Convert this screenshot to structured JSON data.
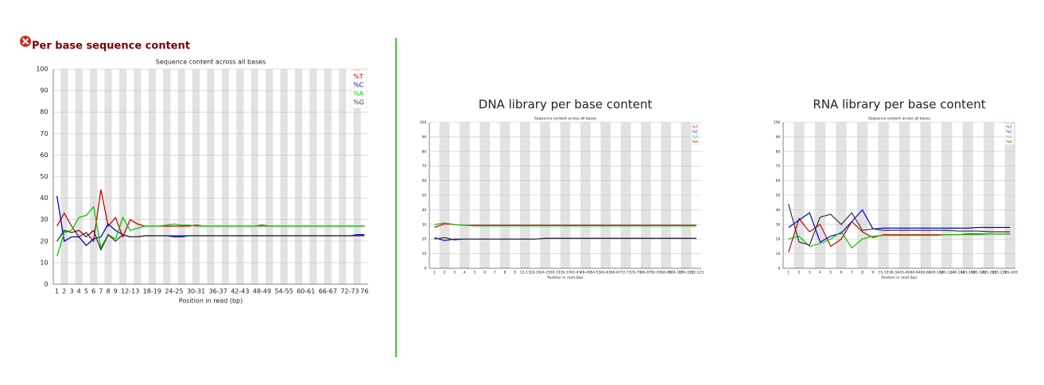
{
  "header": {
    "title": "Per base sequence content"
  },
  "chart_data": [
    {
      "type": "line",
      "subtitle": "Sequence content across all bases",
      "xlabel": "Position in read (bp)",
      "categories": [
        "1",
        "2",
        "3",
        "4",
        "5",
        "6",
        "7",
        "8",
        "9",
        null,
        "12-13",
        null,
        null,
        "18-19",
        null,
        null,
        "24-25",
        null,
        null,
        "30-31",
        null,
        null,
        "36-37",
        null,
        null,
        "42-43",
        null,
        null,
        "48-49",
        null,
        null,
        "54-55",
        null,
        null,
        "60-61",
        null,
        null,
        "66-67",
        null,
        null,
        "72-73",
        null,
        "76"
      ],
      "series": [
        {
          "name": "%T",
          "color": "#cc0000",
          "values": [
            27,
            33,
            27,
            22,
            24,
            20,
            44,
            27,
            31,
            22,
            30,
            28,
            27,
            27,
            27,
            27,
            27,
            27,
            27,
            27.5,
            27,
            27,
            27,
            27,
            27,
            27,
            27,
            27,
            27.5,
            27,
            27,
            27,
            27,
            27,
            27,
            27,
            27,
            27,
            27,
            27,
            27,
            27,
            27
          ]
        },
        {
          "name": "%C",
          "color": "#0000cc",
          "values": [
            41,
            20,
            22,
            22,
            18,
            21,
            22,
            28,
            25,
            23,
            22,
            22,
            22.5,
            22.5,
            22.5,
            22.5,
            22,
            22,
            22.5,
            22.5,
            22.5,
            22.5,
            22.5,
            22.5,
            22.5,
            22.5,
            22.5,
            22.5,
            22.5,
            22.5,
            22.5,
            22.5,
            22.5,
            22.5,
            22.5,
            22.5,
            22.5,
            22.5,
            22.5,
            22.5,
            22.5,
            23,
            23
          ]
        },
        {
          "name": "%A",
          "color": "#00cc00",
          "values": [
            13,
            24,
            25,
            31,
            32,
            36,
            17,
            23,
            21,
            31,
            25,
            26,
            27,
            27,
            27,
            27.5,
            28,
            27.5,
            27.5,
            27,
            27,
            27,
            27,
            27,
            27,
            27,
            27,
            27,
            27,
            27,
            27,
            27,
            27,
            27,
            27,
            27,
            27,
            27,
            27,
            27,
            27,
            27,
            27
          ]
        },
        {
          "name": "%G",
          "color": "#333333",
          "values": [
            20,
            25,
            24,
            25,
            22,
            25,
            16,
            23,
            20,
            23,
            22,
            22,
            22.5,
            22.5,
            22.5,
            22.5,
            22.5,
            22.5,
            22.5,
            22.5,
            22.5,
            22.5,
            22.5,
            22.5,
            22.5,
            22.5,
            22.5,
            22.5,
            22.5,
            22.5,
            22.5,
            22.5,
            22.5,
            22.5,
            22.5,
            22.5,
            22.5,
            22.5,
            22.5,
            22.5,
            22.5,
            22.5,
            22.5
          ]
        }
      ],
      "ylim": [
        0,
        100
      ],
      "yticks": [
        0,
        10,
        20,
        30,
        40,
        50,
        60,
        70,
        80,
        90,
        100
      ],
      "grid": true,
      "legend": "top-right"
    },
    {
      "type": "line",
      "title": "DNA library per base content",
      "subtitle": "Sequence content across all bases",
      "xlabel": "Position in read (bp)",
      "categories": [
        "1",
        "2",
        "3",
        "4",
        "5",
        "6",
        "7",
        "8",
        "9",
        "12-13",
        "18-19",
        "24-25",
        "30-31",
        "36-37",
        "42-43",
        "48-49",
        "54-55",
        "60-61",
        "66-67",
        "72-73",
        "78-79",
        "86-87",
        "92-93",
        "98-99",
        "106-107",
        "114-115",
        "122-123"
      ],
      "series": [
        {
          "name": "%T",
          "color": "#cc0000",
          "values": [
            28,
            30.5,
            30,
            29.5,
            29.5,
            29.5,
            29.5,
            29.5,
            29.5,
            29.5,
            29.5,
            29.5,
            29.5,
            29.5,
            29.5,
            29.5,
            29.5,
            29.5,
            29.5,
            29.5,
            29.5,
            29.5,
            29.5,
            29.5,
            29.5,
            29.5,
            29.5
          ]
        },
        {
          "name": "%C",
          "color": "#0000cc",
          "values": [
            21,
            19,
            20,
            20,
            20,
            20,
            20,
            20,
            20,
            20,
            20,
            20.5,
            20.5,
            20.5,
            20.5,
            20.5,
            20.5,
            20.5,
            20.5,
            20.5,
            20.5,
            20.5,
            20.5,
            20.5,
            20.5,
            20.5,
            20.5
          ]
        },
        {
          "name": "%A",
          "color": "#00cc00",
          "values": [
            30,
            31,
            30,
            29.5,
            29,
            29,
            29,
            29,
            29,
            29,
            29,
            29,
            29,
            29,
            29,
            29,
            29,
            29,
            29,
            29,
            29,
            29,
            29,
            29,
            29,
            29,
            29
          ]
        },
        {
          "name": "%G",
          "color": "#333333",
          "values": [
            20,
            21,
            19.5,
            20,
            20,
            20,
            20,
            20,
            20,
            20,
            20,
            20.5,
            20.5,
            20.5,
            20.5,
            20.5,
            20.5,
            20.5,
            20.5,
            20.5,
            20.5,
            20.5,
            20.5,
            20.5,
            20.5,
            20.5,
            20.5
          ]
        }
      ],
      "ylim": [
        0,
        100
      ],
      "yticks": [
        0,
        10,
        20,
        30,
        40,
        50,
        60,
        70,
        80,
        90,
        100
      ],
      "grid": true,
      "legend": "top-right"
    },
    {
      "type": "line",
      "title": "RNA library per base content",
      "subtitle": "Sequence content across all bases",
      "xlabel": "Position in read (bp)",
      "categories": [
        "1",
        "2",
        "3",
        "4",
        "5",
        "6",
        "7",
        "8",
        "9",
        "15-19",
        "30-34",
        "45-49",
        "60-64",
        "80-84",
        "100-104",
        "120-124",
        "140-144",
        "165-169",
        "185-189",
        "205-209",
        "225-229",
        "245-249"
      ],
      "series": [
        {
          "name": "%T",
          "color": "#cc0000",
          "values": [
            11,
            34,
            25,
            30,
            15,
            20,
            32,
            25,
            21,
            23,
            23,
            23,
            23,
            23,
            23,
            23,
            23,
            23.5,
            23.5,
            23.5,
            23.5,
            23.5
          ]
        },
        {
          "name": "%C",
          "color": "#0000cc",
          "values": [
            28,
            33,
            38,
            18,
            22,
            24,
            32,
            40,
            27,
            27.5,
            27.5,
            27.5,
            27.5,
            27.5,
            27.5,
            27.5,
            27.5,
            27.5,
            28,
            28,
            28,
            28
          ]
        },
        {
          "name": "%A",
          "color": "#00cc00",
          "values": [
            20,
            22,
            15,
            17,
            20,
            25,
            14,
            20,
            22,
            22.5,
            22.5,
            22.5,
            22.5,
            22.5,
            22.5,
            23,
            23,
            23,
            23,
            23.5,
            23.5,
            23.5
          ]
        },
        {
          "name": "%G",
          "color": "#333333",
          "values": [
            44,
            18,
            16,
            35,
            37,
            30,
            38,
            26,
            27,
            26,
            26,
            26,
            26,
            26,
            26,
            26,
            25.5,
            25.5,
            25.5,
            25,
            25,
            25
          ]
        }
      ],
      "ylim": [
        0,
        100
      ],
      "yticks": [
        0,
        10,
        20,
        30,
        40,
        50,
        60,
        70,
        80,
        90,
        100
      ],
      "grid": true,
      "legend": "top-right"
    }
  ]
}
